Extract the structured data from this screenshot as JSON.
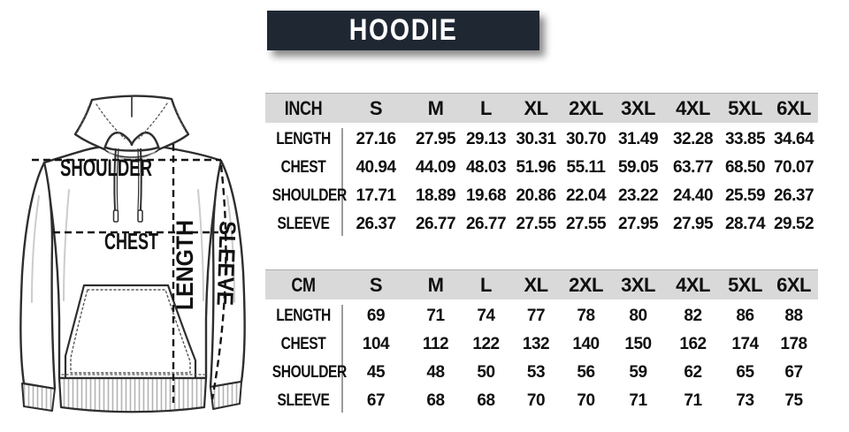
{
  "title": "HOODIE",
  "diagram": {
    "labels": {
      "shoulder": "SHOULDER",
      "chest": "CHEST",
      "length": "LENGTH",
      "sleeve": "SLEEVE"
    }
  },
  "tables": [
    {
      "unit_label": "INCH",
      "sizes": [
        "S",
        "M",
        "L",
        "XL",
        "2XL",
        "3XL",
        "4XL",
        "5XL",
        "6XL"
      ],
      "rows": [
        {
          "label": "LENGTH",
          "values": [
            "27.16",
            "27.95",
            "29.13",
            "30.31",
            "30.70",
            "31.49",
            "32.28",
            "33.85",
            "34.64"
          ]
        },
        {
          "label": "CHEST",
          "values": [
            "40.94",
            "44.09",
            "48.03",
            "51.96",
            "55.11",
            "59.05",
            "63.77",
            "68.50",
            "70.07"
          ]
        },
        {
          "label": "SHOULDER",
          "values": [
            "17.71",
            "18.89",
            "19.68",
            "20.86",
            "22.04",
            "23.22",
            "24.40",
            "25.59",
            "26.37"
          ]
        },
        {
          "label": "SLEEVE",
          "values": [
            "26.37",
            "26.77",
            "26.77",
            "27.55",
            "27.55",
            "27.95",
            "27.95",
            "28.74",
            "29.52"
          ]
        }
      ]
    },
    {
      "unit_label": "CM",
      "sizes": [
        "S",
        "M",
        "L",
        "XL",
        "2XL",
        "3XL",
        "4XL",
        "5XL",
        "6XL"
      ],
      "rows": [
        {
          "label": "LENGTH",
          "values": [
            "69",
            "71",
            "74",
            "77",
            "78",
            "80",
            "82",
            "86",
            "88"
          ]
        },
        {
          "label": "CHEST",
          "values": [
            "104",
            "112",
            "122",
            "132",
            "140",
            "150",
            "162",
            "174",
            "178"
          ]
        },
        {
          "label": "SHOULDER",
          "values": [
            "45",
            "48",
            "50",
            "53",
            "56",
            "59",
            "62",
            "65",
            "67"
          ]
        },
        {
          "label": "SLEEVE",
          "values": [
            "67",
            "68",
            "68",
            "70",
            "70",
            "71",
            "71",
            "73",
            "75"
          ]
        }
      ]
    }
  ],
  "chart_data": {
    "type": "table",
    "title": "HOODIE",
    "units": [
      "INCH",
      "CM"
    ],
    "categories": [
      "S",
      "M",
      "L",
      "XL",
      "2XL",
      "3XL",
      "4XL",
      "5XL",
      "6XL"
    ],
    "series": [
      {
        "name": "LENGTH (inch)",
        "values": [
          27.16,
          27.95,
          29.13,
          30.31,
          30.7,
          31.49,
          32.28,
          33.85,
          34.64
        ]
      },
      {
        "name": "CHEST (inch)",
        "values": [
          40.94,
          44.09,
          48.03,
          51.96,
          55.11,
          59.05,
          63.77,
          68.5,
          70.07
        ]
      },
      {
        "name": "SHOULDER (inch)",
        "values": [
          17.71,
          18.89,
          19.68,
          20.86,
          22.04,
          23.22,
          24.4,
          25.59,
          26.37
        ]
      },
      {
        "name": "SLEEVE (inch)",
        "values": [
          26.37,
          26.77,
          26.77,
          27.55,
          27.55,
          27.95,
          27.95,
          28.74,
          29.52
        ]
      },
      {
        "name": "LENGTH (cm)",
        "values": [
          69,
          71,
          74,
          77,
          78,
          80,
          82,
          86,
          88
        ]
      },
      {
        "name": "CHEST (cm)",
        "values": [
          104,
          112,
          122,
          132,
          140,
          150,
          162,
          174,
          178
        ]
      },
      {
        "name": "SHOULDER (cm)",
        "values": [
          45,
          48,
          50,
          53,
          56,
          59,
          62,
          65,
          67
        ]
      },
      {
        "name": "SLEEVE (cm)",
        "values": [
          67,
          68,
          68,
          70,
          70,
          71,
          71,
          73,
          75
        ]
      }
    ]
  },
  "colors": {
    "title_bg": "#1f2733",
    "header_strip": "#d9d9d9",
    "text": "#0f0f0f",
    "sketch_stroke": "#2e2e2e"
  }
}
